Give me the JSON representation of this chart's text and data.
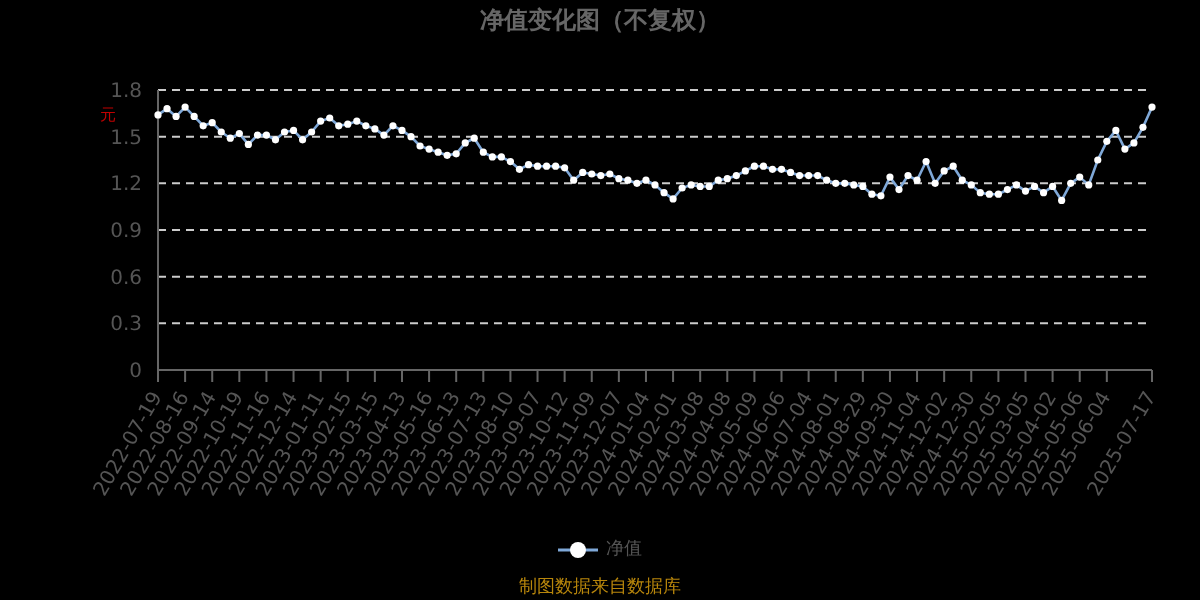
{
  "chart_data": {
    "type": "line",
    "title": "净值变化图（不复权）",
    "ylabel": "元",
    "annotations": [
      "制图数据来自数据库"
    ],
    "categories": [
      "2022-07-19",
      null,
      null,
      "2022-08-16",
      null,
      null,
      "2022-09-14",
      null,
      null,
      "2022-10-19",
      null,
      null,
      "2022-11-16",
      null,
      null,
      "2022-12-14",
      null,
      null,
      "2023-01-11",
      null,
      null,
      "2023-02-15",
      null,
      null,
      "2023-03-15",
      null,
      null,
      "2023-04-13",
      null,
      null,
      "2023-05-16",
      null,
      null,
      "2023-06-13",
      null,
      null,
      "2023-07-13",
      null,
      null,
      "2023-08-10",
      null,
      null,
      "2023-09-07",
      null,
      null,
      "2023-10-12",
      null,
      null,
      "2023-11-09",
      null,
      null,
      "2023-12-07",
      null,
      null,
      "2024-01-04",
      null,
      null,
      "2024-02-01",
      null,
      null,
      "2024-03-08",
      null,
      null,
      "2024-04-08",
      null,
      null,
      "2024-05-09",
      null,
      null,
      "2024-06-06",
      null,
      null,
      "2024-07-04",
      null,
      null,
      "2024-08-01",
      null,
      null,
      "2024-08-29",
      null,
      null,
      "2024-09-30",
      null,
      null,
      "2024-11-04",
      null,
      null,
      "2024-12-02",
      null,
      null,
      "2024-12-30",
      null,
      null,
      "2025-02-05",
      null,
      null,
      "2025-03-05",
      null,
      null,
      "2025-04-02",
      null,
      null,
      "2025-05-06",
      null,
      null,
      "2025-06-04",
      null,
      null,
      null,
      null,
      "2025-07-17"
    ],
    "series": [
      {
        "name": "净值",
        "color": "#7fa8d8",
        "values": [
          1.64,
          1.68,
          1.63,
          1.69,
          1.63,
          1.57,
          1.59,
          1.53,
          1.49,
          1.52,
          1.45,
          1.51,
          1.51,
          1.48,
          1.53,
          1.54,
          1.48,
          1.53,
          1.6,
          1.62,
          1.57,
          1.58,
          1.6,
          1.57,
          1.55,
          1.51,
          1.57,
          1.54,
          1.5,
          1.44,
          1.42,
          1.4,
          1.38,
          1.39,
          1.46,
          1.49,
          1.4,
          1.37,
          1.37,
          1.34,
          1.29,
          1.32,
          1.31,
          1.31,
          1.31,
          1.3,
          1.22,
          1.27,
          1.26,
          1.25,
          1.26,
          1.23,
          1.22,
          1.2,
          1.22,
          1.19,
          1.14,
          1.1,
          1.17,
          1.19,
          1.18,
          1.18,
          1.22,
          1.23,
          1.25,
          1.28,
          1.31,
          1.31,
          1.29,
          1.29,
          1.27,
          1.25,
          1.25,
          1.25,
          1.22,
          1.2,
          1.2,
          1.19,
          1.18,
          1.13,
          1.12,
          1.24,
          1.16,
          1.25,
          1.22,
          1.34,
          1.2,
          1.28,
          1.31,
          1.22,
          1.19,
          1.14,
          1.13,
          1.13,
          1.16,
          1.19,
          1.15,
          1.18,
          1.14,
          1.18,
          1.09,
          1.2,
          1.24,
          1.19,
          1.35,
          1.47,
          1.54,
          1.42,
          1.46,
          1.56,
          1.69
        ]
      }
    ],
    "ylim": [
      0,
      1.8
    ],
    "yticks": [
      0,
      0.3,
      0.6,
      0.9,
      1.2,
      1.5,
      1.8
    ],
    "grid": "y",
    "legend": "bottom",
    "marker": "circle",
    "line_style": "solid"
  }
}
